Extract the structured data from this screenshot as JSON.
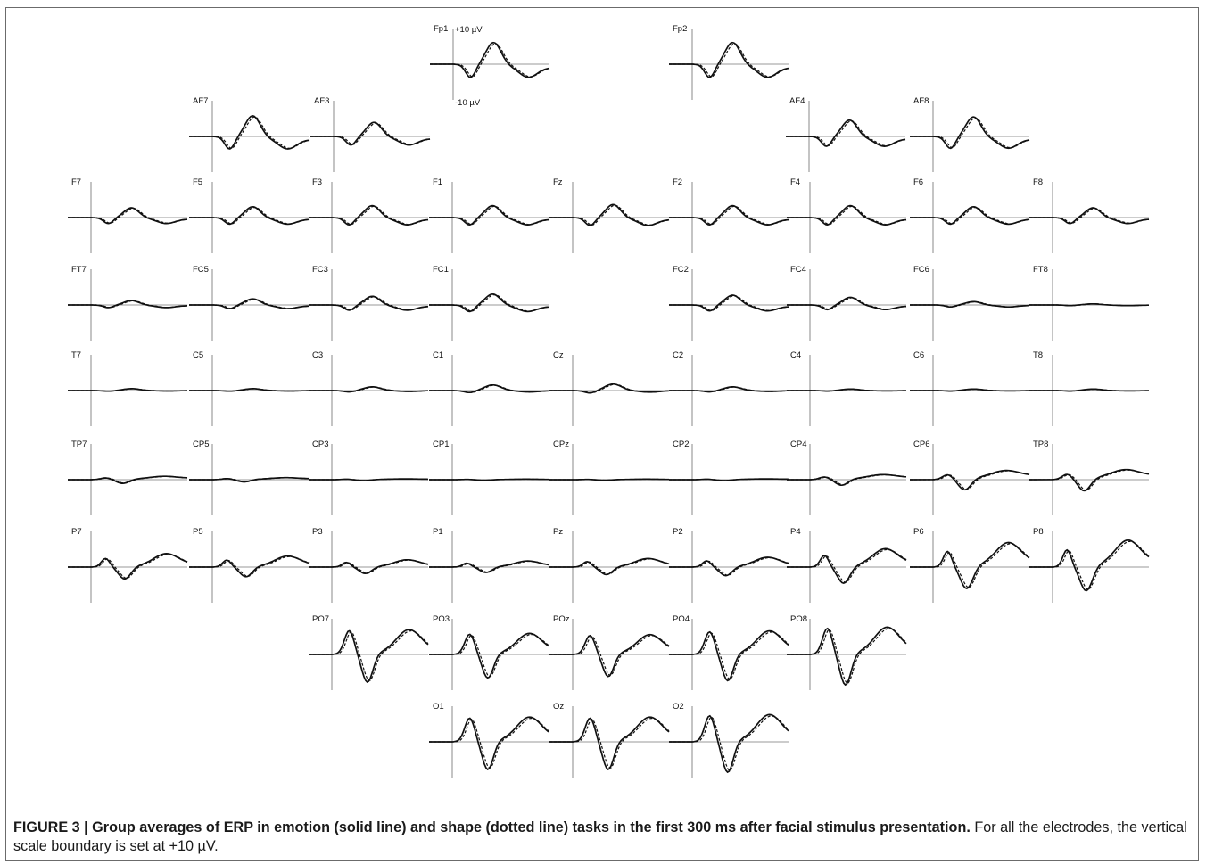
{
  "figure": {
    "caption_bold": "FIGURE 3 | Group averages of ERP in emotion (solid line) and shape (dotted line) tasks in the first 300 ms after facial stimulus presentation.",
    "caption_rest": " For all the electrodes, the vertical scale boundary is set at +10 µV."
  },
  "scale": {
    "top": "+10 µV",
    "bottom": "-10 µV"
  },
  "chart_data": {
    "type": "line",
    "series_styles": {
      "solid": "emotion task",
      "dotted": "shape task"
    },
    "electrodes": [
      {
        "name": "Fp1",
        "wave": "frontal",
        "amp": 1.0
      },
      {
        "name": "Fp2",
        "wave": "frontal",
        "amp": 1.0
      },
      {
        "name": "AF7",
        "wave": "frontal",
        "amp": 0.95
      },
      {
        "name": "AF3",
        "wave": "frontal",
        "amp": 0.65
      },
      {
        "name": "AF4",
        "wave": "frontal",
        "amp": 0.75
      },
      {
        "name": "AF8",
        "wave": "frontal",
        "amp": 0.9
      },
      {
        "name": "F7",
        "wave": "frontal",
        "amp": 0.45
      },
      {
        "name": "F5",
        "wave": "frontal",
        "amp": 0.5
      },
      {
        "name": "F3",
        "wave": "frontal",
        "amp": 0.55
      },
      {
        "name": "F1",
        "wave": "frontal",
        "amp": 0.55
      },
      {
        "name": "Fz",
        "wave": "frontal",
        "amp": 0.6
      },
      {
        "name": "F2",
        "wave": "frontal",
        "amp": 0.55
      },
      {
        "name": "F4",
        "wave": "frontal",
        "amp": 0.55
      },
      {
        "name": "F6",
        "wave": "frontal",
        "amp": 0.5
      },
      {
        "name": "F8",
        "wave": "frontal",
        "amp": 0.45
      },
      {
        "name": "FT7",
        "wave": "frontal",
        "amp": 0.2
      },
      {
        "name": "FC5",
        "wave": "frontal",
        "amp": 0.28
      },
      {
        "name": "FC3",
        "wave": "frontal",
        "amp": 0.4
      },
      {
        "name": "FC1",
        "wave": "frontal",
        "amp": 0.5
      },
      {
        "name": "FC2",
        "wave": "frontal",
        "amp": 0.45
      },
      {
        "name": "FC4",
        "wave": "frontal",
        "amp": 0.35
      },
      {
        "name": "FC6",
        "wave": "frontal",
        "amp": 0.15
      },
      {
        "name": "FT8",
        "wave": "frontal",
        "amp": 0.05
      },
      {
        "name": "T7",
        "wave": "central",
        "amp": 0.1
      },
      {
        "name": "C5",
        "wave": "central",
        "amp": 0.1
      },
      {
        "name": "C3",
        "wave": "central",
        "amp": 0.2
      },
      {
        "name": "C1",
        "wave": "central",
        "amp": 0.3
      },
      {
        "name": "Cz",
        "wave": "central",
        "amp": 0.35
      },
      {
        "name": "C2",
        "wave": "central",
        "amp": 0.2
      },
      {
        "name": "C4",
        "wave": "central",
        "amp": 0.08
      },
      {
        "name": "C6",
        "wave": "central",
        "amp": 0.08
      },
      {
        "name": "T8",
        "wave": "central",
        "amp": 0.08
      },
      {
        "name": "TP7",
        "wave": "centropar",
        "amp": 0.2
      },
      {
        "name": "CP5",
        "wave": "centropar",
        "amp": 0.12
      },
      {
        "name": "CP3",
        "wave": "centropar",
        "amp": 0.05
      },
      {
        "name": "CP1",
        "wave": "centropar",
        "amp": 0.03
      },
      {
        "name": "CPz",
        "wave": "centropar",
        "amp": 0.03
      },
      {
        "name": "CP2",
        "wave": "centropar",
        "amp": 0.05
      },
      {
        "name": "CP4",
        "wave": "centropar",
        "amp": 0.3
      },
      {
        "name": "CP6",
        "wave": "centropar",
        "amp": 0.55
      },
      {
        "name": "TP8",
        "wave": "centropar",
        "amp": 0.6
      },
      {
        "name": "P7",
        "wave": "parietal",
        "amp": 0.55
      },
      {
        "name": "P5",
        "wave": "parietal",
        "amp": 0.45
      },
      {
        "name": "P3",
        "wave": "parietal",
        "amp": 0.3
      },
      {
        "name": "P1",
        "wave": "parietal",
        "amp": 0.25
      },
      {
        "name": "Pz",
        "wave": "parietal",
        "amp": 0.35
      },
      {
        "name": "P2",
        "wave": "parietal",
        "amp": 0.4
      },
      {
        "name": "P4",
        "wave": "parietal",
        "amp": 0.75
      },
      {
        "name": "P6",
        "wave": "parietal",
        "amp": 1.0
      },
      {
        "name": "P8",
        "wave": "parietal",
        "amp": 1.1
      },
      {
        "name": "PO7",
        "wave": "occipital",
        "amp": 1.0
      },
      {
        "name": "PO3",
        "wave": "occipital",
        "amp": 0.85
      },
      {
        "name": "POz",
        "wave": "occipital",
        "amp": 0.8
      },
      {
        "name": "PO4",
        "wave": "occipital",
        "amp": 0.95
      },
      {
        "name": "PO8",
        "wave": "occipital",
        "amp": 1.1
      },
      {
        "name": "O1",
        "wave": "occipital",
        "amp": 1.0
      },
      {
        "name": "Oz",
        "wave": "occipital",
        "amp": 1.0
      },
      {
        "name": "O2",
        "wave": "occipital",
        "amp": 1.1
      }
    ]
  }
}
